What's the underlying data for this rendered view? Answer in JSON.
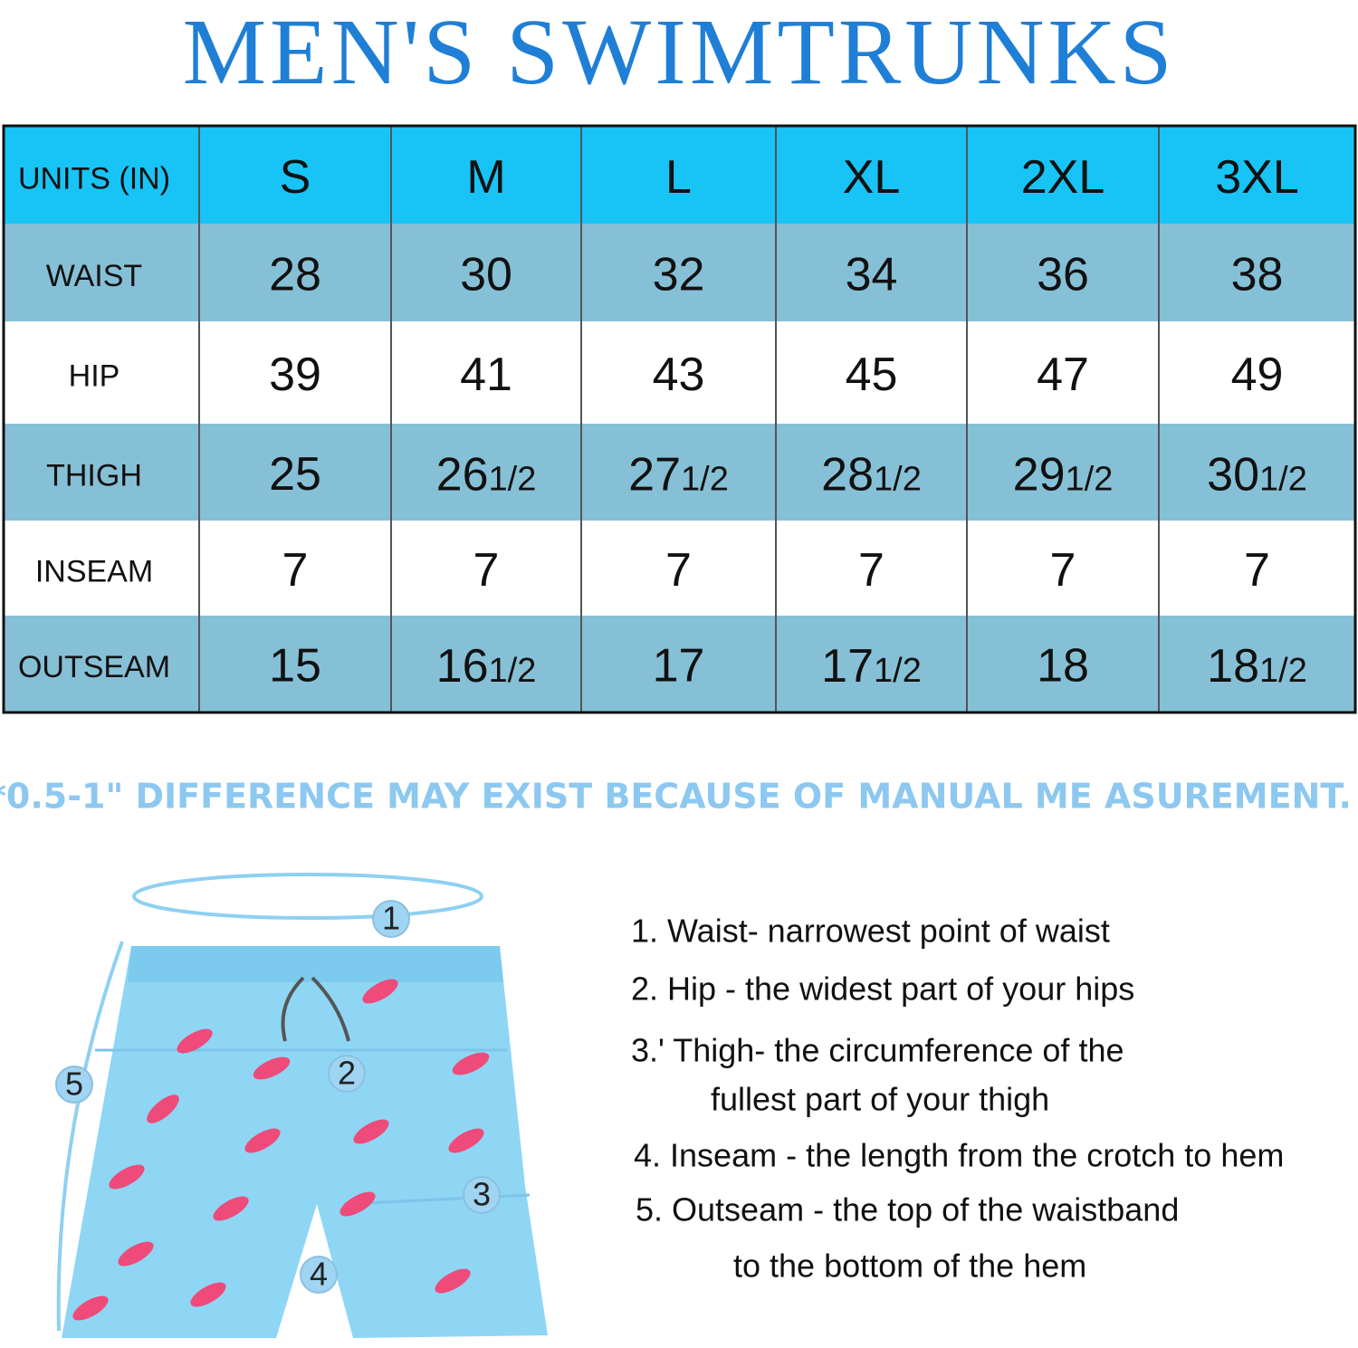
{
  "title": "MEN'S SWIMTRUNKS",
  "table": {
    "header": [
      "UNITS (IN)",
      "S",
      "M",
      "L",
      "XL",
      "2XL",
      "3XL"
    ],
    "rows": [
      [
        "WAIST",
        "28",
        "30",
        "32",
        "34",
        "36",
        "38"
      ],
      [
        "HIP",
        "39",
        "41",
        "43",
        "45",
        "47",
        "49"
      ],
      [
        "THIGH",
        "25",
        {
          "whole": "26",
          "fraction": "1/2"
        },
        {
          "whole": "27",
          "fraction": "1/2"
        },
        {
          "whole": "28",
          "fraction": "1/2"
        },
        {
          "whole": "29",
          "fraction": "1/2"
        },
        {
          "whole": "30",
          "fraction": "1/2"
        }
      ],
      [
        "INSEAM",
        "7",
        "7",
        "7",
        "7",
        "7",
        "7"
      ],
      [
        "OUTSEAM",
        "15",
        {
          "whole": "16",
          "fraction": "1/2"
        },
        "17",
        {
          "whole": "17",
          "fraction": "1/2"
        },
        "18",
        {
          "whole": "18",
          "fraction": "1/2"
        }
      ]
    ]
  },
  "note": "*0.5-1\" DIFFERENCE MAY EXIST BECAUSE OF MANUAL ME ASUREMENT.",
  "illustration": {
    "markers": [
      "1",
      "2",
      "3",
      "4",
      "5"
    ]
  },
  "instructions": [
    {
      "lines": [
        "1. Waist- narrowest point of waist"
      ]
    },
    {
      "lines": [
        "2. Hip - the widest part of your hips"
      ]
    },
    {
      "lines": [
        "3.' Thigh- the circumference of the",
        "fullest part of your thigh"
      ]
    },
    {
      "lines": [
        "4. Inseam - the length from the crotch to hem"
      ]
    },
    {
      "lines": [
        "5. Outseam - the top of the waistband",
        "to the bottom of the hem"
      ]
    }
  ]
}
